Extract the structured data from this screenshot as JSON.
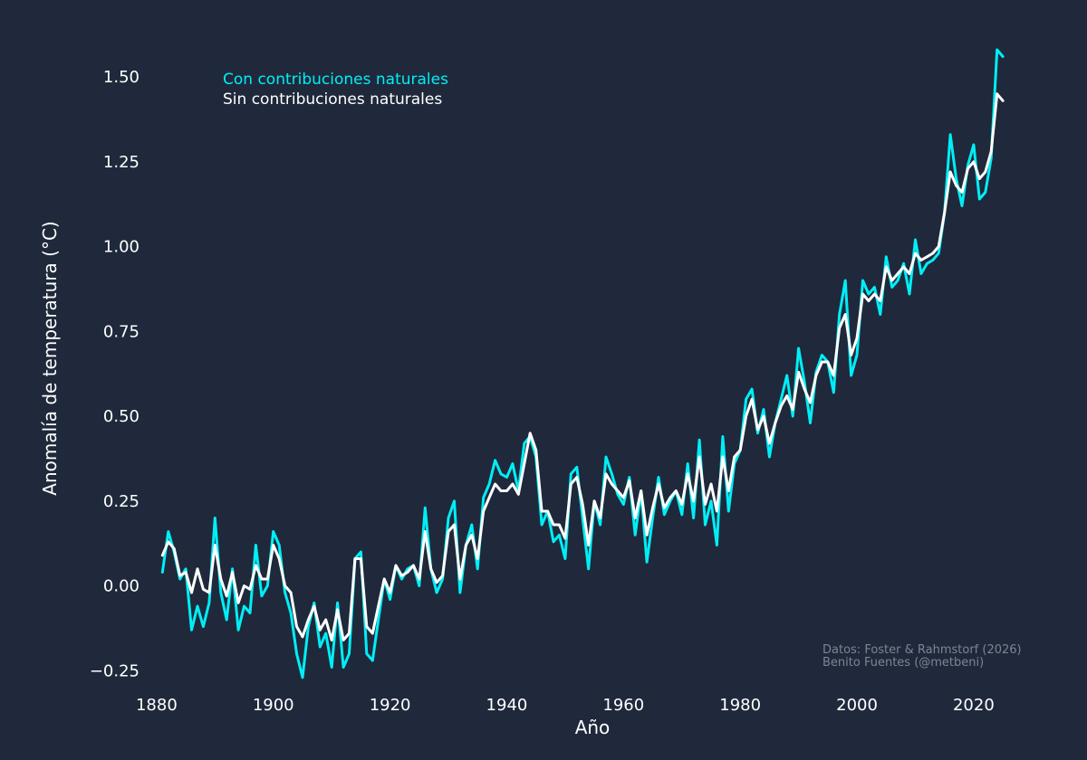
{
  "colors": {
    "background": "#1f293b",
    "with_natural": "#00eef6",
    "without_natural": "#ffffff",
    "credit": "#7d8594"
  },
  "credits": {
    "line1": "Datos: Foster & Rahmstorf (2026)",
    "line2": "Benito Fuentes (@metbeni)"
  },
  "chart_data": {
    "type": "line",
    "title": "",
    "xlabel": "Año",
    "ylabel": "Anomalía de temperatura (°C)",
    "xlim": [
      1878,
      2027
    ],
    "ylim": [
      -0.3,
      1.62
    ],
    "xticks": [
      1880,
      1900,
      1920,
      1940,
      1960,
      1980,
      2000,
      2020
    ],
    "yticks": [
      -0.25,
      0.0,
      0.25,
      0.5,
      0.75,
      1.0,
      1.25,
      1.5
    ],
    "ytick_labels": [
      "−0.25",
      "0.00",
      "0.25",
      "0.50",
      "0.75",
      "1.00",
      "1.25",
      "1.50"
    ],
    "grid": false,
    "legend": "top-left",
    "x": [
      1881,
      1882,
      1883,
      1884,
      1885,
      1886,
      1887,
      1888,
      1889,
      1890,
      1891,
      1892,
      1893,
      1894,
      1895,
      1896,
      1897,
      1898,
      1899,
      1900,
      1901,
      1902,
      1903,
      1904,
      1905,
      1906,
      1907,
      1908,
      1909,
      1910,
      1911,
      1912,
      1913,
      1914,
      1915,
      1916,
      1917,
      1918,
      1919,
      1920,
      1921,
      1922,
      1923,
      1924,
      1925,
      1926,
      1927,
      1928,
      1929,
      1930,
      1931,
      1932,
      1933,
      1934,
      1935,
      1936,
      1937,
      1938,
      1939,
      1940,
      1941,
      1942,
      1943,
      1944,
      1945,
      1946,
      1947,
      1948,
      1949,
      1950,
      1951,
      1952,
      1953,
      1954,
      1955,
      1956,
      1957,
      1958,
      1959,
      1960,
      1961,
      1962,
      1963,
      1964,
      1965,
      1966,
      1967,
      1968,
      1969,
      1970,
      1971,
      1972,
      1973,
      1974,
      1975,
      1976,
      1977,
      1978,
      1979,
      1980,
      1981,
      1982,
      1983,
      1984,
      1985,
      1986,
      1987,
      1988,
      1989,
      1990,
      1991,
      1992,
      1993,
      1994,
      1995,
      1996,
      1997,
      1998,
      1999,
      2000,
      2001,
      2002,
      2003,
      2004,
      2005,
      2006,
      2007,
      2008,
      2009,
      2010,
      2011,
      2012,
      2013,
      2014,
      2015,
      2016,
      2017,
      2018,
      2019,
      2020,
      2021,
      2022,
      2023,
      2024,
      2025
    ],
    "series": [
      {
        "name": "Con contribuciones naturales",
        "color": "#00eef6",
        "values": [
          0.04,
          0.16,
          0.1,
          0.02,
          0.05,
          -0.13,
          -0.06,
          -0.12,
          -0.05,
          0.2,
          -0.02,
          -0.1,
          0.05,
          -0.13,
          -0.06,
          -0.08,
          0.12,
          -0.03,
          0.0,
          0.16,
          0.12,
          -0.02,
          -0.08,
          -0.2,
          -0.27,
          -0.12,
          -0.05,
          -0.18,
          -0.14,
          -0.24,
          -0.05,
          -0.24,
          -0.2,
          0.08,
          0.1,
          -0.2,
          -0.22,
          -0.1,
          0.02,
          -0.04,
          0.06,
          0.02,
          0.05,
          0.06,
          0.0,
          0.23,
          0.05,
          -0.02,
          0.02,
          0.2,
          0.25,
          -0.02,
          0.12,
          0.18,
          0.05,
          0.26,
          0.3,
          0.37,
          0.33,
          0.32,
          0.36,
          0.28,
          0.42,
          0.44,
          0.38,
          0.18,
          0.22,
          0.13,
          0.15,
          0.08,
          0.33,
          0.35,
          0.2,
          0.05,
          0.25,
          0.18,
          0.38,
          0.33,
          0.27,
          0.24,
          0.32,
          0.15,
          0.28,
          0.07,
          0.2,
          0.32,
          0.21,
          0.25,
          0.28,
          0.21,
          0.36,
          0.2,
          0.43,
          0.18,
          0.25,
          0.12,
          0.44,
          0.22,
          0.36,
          0.4,
          0.55,
          0.58,
          0.45,
          0.52,
          0.38,
          0.48,
          0.55,
          0.62,
          0.5,
          0.7,
          0.6,
          0.48,
          0.63,
          0.68,
          0.66,
          0.57,
          0.8,
          0.9,
          0.62,
          0.68,
          0.9,
          0.86,
          0.88,
          0.8,
          0.97,
          0.88,
          0.9,
          0.95,
          0.86,
          1.02,
          0.92,
          0.95,
          0.96,
          0.98,
          1.1,
          1.33,
          1.2,
          1.12,
          1.24,
          1.3,
          1.14,
          1.16,
          1.26,
          1.58,
          1.56
        ]
      },
      {
        "name": "Sin contribuciones naturales",
        "color": "#ffffff",
        "values": [
          0.09,
          0.13,
          0.11,
          0.03,
          0.04,
          -0.02,
          0.05,
          -0.01,
          -0.02,
          0.12,
          0.02,
          -0.03,
          0.04,
          -0.05,
          0.0,
          -0.01,
          0.06,
          0.02,
          0.02,
          0.12,
          0.08,
          0.0,
          -0.02,
          -0.12,
          -0.15,
          -0.1,
          -0.06,
          -0.13,
          -0.1,
          -0.16,
          -0.07,
          -0.16,
          -0.14,
          0.08,
          0.08,
          -0.12,
          -0.14,
          -0.06,
          0.02,
          -0.02,
          0.06,
          0.03,
          0.04,
          0.06,
          0.02,
          0.16,
          0.05,
          0.01,
          0.03,
          0.16,
          0.18,
          0.02,
          0.12,
          0.15,
          0.08,
          0.22,
          0.26,
          0.3,
          0.28,
          0.28,
          0.3,
          0.27,
          0.36,
          0.45,
          0.4,
          0.22,
          0.22,
          0.18,
          0.18,
          0.14,
          0.3,
          0.32,
          0.24,
          0.12,
          0.25,
          0.2,
          0.33,
          0.3,
          0.28,
          0.26,
          0.31,
          0.2,
          0.28,
          0.15,
          0.23,
          0.3,
          0.23,
          0.26,
          0.28,
          0.24,
          0.33,
          0.25,
          0.38,
          0.24,
          0.3,
          0.22,
          0.38,
          0.28,
          0.38,
          0.4,
          0.5,
          0.55,
          0.46,
          0.5,
          0.42,
          0.48,
          0.53,
          0.56,
          0.52,
          0.63,
          0.58,
          0.54,
          0.62,
          0.66,
          0.66,
          0.62,
          0.76,
          0.8,
          0.68,
          0.73,
          0.86,
          0.84,
          0.86,
          0.84,
          0.94,
          0.9,
          0.92,
          0.94,
          0.92,
          0.98,
          0.96,
          0.97,
          0.98,
          1.0,
          1.1,
          1.22,
          1.18,
          1.16,
          1.23,
          1.25,
          1.2,
          1.22,
          1.28,
          1.45,
          1.43
        ]
      }
    ]
  }
}
